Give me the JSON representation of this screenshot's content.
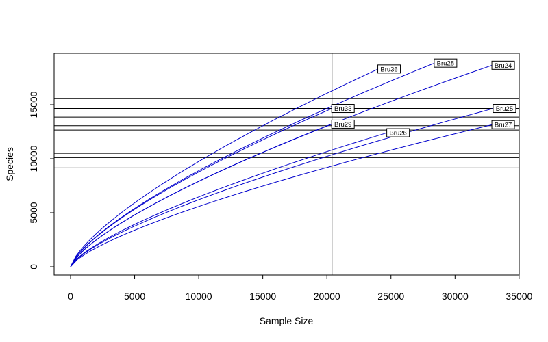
{
  "chart_data": {
    "type": "line",
    "title": "",
    "xlabel": "Sample Size",
    "ylabel": "Species",
    "xlim": [
      0,
      35000
    ],
    "ylim": [
      0,
      19000
    ],
    "x_ticks": [
      0,
      5000,
      10000,
      15000,
      20000,
      25000,
      30000,
      35000
    ],
    "x_tick_labels": [
      "0",
      "5000",
      "10000",
      "15000",
      "20000",
      "25000",
      "30000",
      "35000"
    ],
    "y_ticks": [
      0,
      5000,
      10000,
      15000
    ],
    "y_tick_labels": [
      "0",
      "5000",
      "10000",
      "15000"
    ],
    "line_color": "#0000cc",
    "vertical_reference": 20400,
    "horizontal_references": [
      9150,
      10100,
      10500,
      12650,
      13050,
      13200,
      13850,
      14650,
      15550
    ],
    "series": [
      {
        "name": "Bru36",
        "end_x": 24000,
        "end_y": 18300
      },
      {
        "name": "Bru28",
        "end_x": 28400,
        "end_y": 18850
      },
      {
        "name": "Bru24",
        "end_x": 32900,
        "end_y": 18650
      },
      {
        "name": "Bru33",
        "end_x": 20400,
        "end_y": 14650
      },
      {
        "name": "Bru29",
        "end_x": 20400,
        "end_y": 13200
      },
      {
        "name": "Bru25",
        "end_x": 33000,
        "end_y": 14650
      },
      {
        "name": "Bru26",
        "end_x": 24700,
        "end_y": 12400
      },
      {
        "name": "Bru27",
        "end_x": 32900,
        "end_y": 13150
      }
    ]
  }
}
